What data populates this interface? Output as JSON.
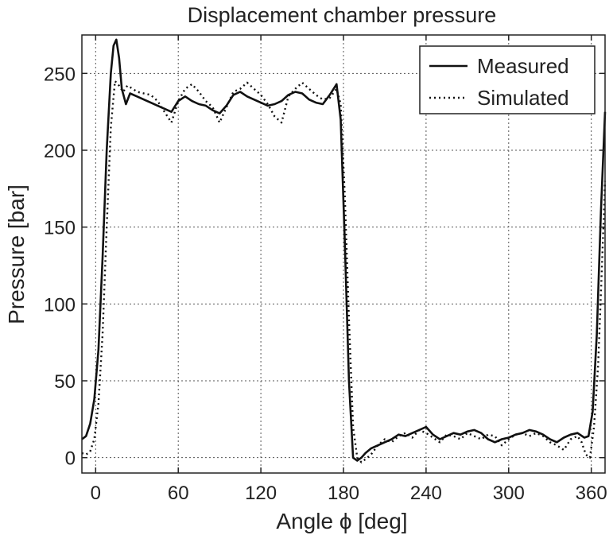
{
  "chart_data": {
    "type": "line",
    "title": "Displacement chamber pressure",
    "xlabel": "Angle ϕ [deg]",
    "ylabel": "Pressure  [bar]",
    "xlim": [
      -10,
      370
    ],
    "ylim": [
      -10,
      275
    ],
    "xticks": [
      0,
      60,
      120,
      180,
      240,
      300,
      360
    ],
    "yticks": [
      0,
      50,
      100,
      150,
      200,
      250
    ],
    "grid": true,
    "legend": {
      "position": "top-right"
    },
    "series": [
      {
        "name": "Measured",
        "style": "solid",
        "x": [
          -10,
          -7,
          -4,
          -1,
          2,
          5,
          8,
          11,
          13,
          15,
          17,
          19,
          22,
          25,
          30,
          35,
          40,
          45,
          50,
          55,
          60,
          65,
          70,
          75,
          80,
          85,
          90,
          95,
          100,
          105,
          110,
          115,
          120,
          125,
          130,
          135,
          140,
          145,
          150,
          155,
          160,
          165,
          170,
          175,
          178,
          181,
          184,
          187,
          190,
          193,
          196,
          200,
          205,
          210,
          215,
          220,
          225,
          230,
          235,
          240,
          245,
          250,
          255,
          260,
          265,
          270,
          275,
          280,
          285,
          290,
          295,
          300,
          305,
          310,
          315,
          320,
          325,
          330,
          335,
          340,
          345,
          350,
          355,
          358,
          361,
          364,
          367,
          370
        ],
        "y": [
          12,
          14,
          22,
          38,
          70,
          130,
          200,
          250,
          268,
          272,
          260,
          240,
          230,
          237,
          235,
          233,
          231,
          229,
          227,
          225,
          232,
          235,
          232,
          230,
          229,
          226,
          224,
          229,
          236,
          238,
          235,
          233,
          231,
          229,
          230,
          232,
          236,
          238,
          237,
          233,
          231,
          230,
          236,
          243,
          220,
          140,
          50,
          0,
          -2,
          0,
          3,
          6,
          8,
          10,
          12,
          15,
          14,
          16,
          18,
          20,
          15,
          12,
          14,
          16,
          15,
          17,
          18,
          16,
          12,
          10,
          12,
          13,
          15,
          16,
          18,
          17,
          15,
          12,
          10,
          13,
          15,
          16,
          13,
          14,
          30,
          80,
          160,
          225
        ]
      },
      {
        "name": "Simulated",
        "style": "dotted",
        "x": [
          -10,
          -7,
          -4,
          -1,
          2,
          5,
          8,
          11,
          14,
          17,
          20,
          23,
          27,
          30,
          35,
          40,
          45,
          50,
          55,
          60,
          65,
          70,
          75,
          80,
          85,
          90,
          95,
          100,
          105,
          110,
          115,
          120,
          125,
          130,
          135,
          140,
          145,
          150,
          155,
          160,
          165,
          170,
          175,
          178,
          181,
          184,
          187,
          190,
          193,
          196,
          200,
          205,
          210,
          215,
          220,
          225,
          230,
          235,
          240,
          245,
          250,
          255,
          260,
          265,
          270,
          275,
          280,
          285,
          290,
          295,
          300,
          305,
          310,
          315,
          320,
          325,
          330,
          335,
          340,
          345,
          350,
          353,
          356,
          359,
          362,
          365,
          368,
          370
        ],
        "y": [
          3,
          2,
          4,
          12,
          35,
          80,
          150,
          215,
          245,
          242,
          238,
          242,
          240,
          238,
          237,
          236,
          232,
          225,
          218,
          232,
          240,
          243,
          238,
          232,
          228,
          218,
          228,
          238,
          240,
          244,
          240,
          236,
          230,
          222,
          218,
          235,
          240,
          244,
          240,
          236,
          233,
          234,
          240,
          230,
          170,
          90,
          20,
          0,
          -3,
          -1,
          2,
          8,
          12,
          10,
          14,
          16,
          13,
          18,
          16,
          13,
          10,
          15,
          14,
          12,
          16,
          14,
          12,
          15,
          14,
          8,
          12,
          15,
          16,
          14,
          16,
          14,
          10,
          8,
          5,
          12,
          14,
          10,
          2,
          0,
          20,
          60,
          130,
          180
        ]
      }
    ]
  }
}
